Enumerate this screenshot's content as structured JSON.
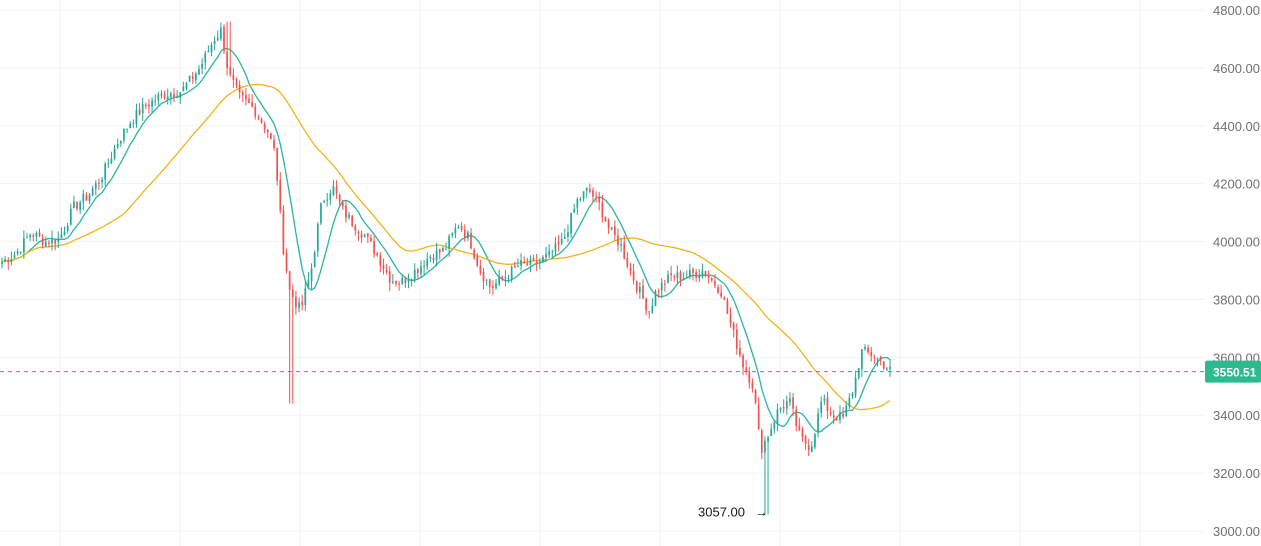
{
  "chart_data": {
    "type": "candlestick",
    "y_axis": {
      "position": "right",
      "ticks": [
        "3000.00",
        "3200.00",
        "3400.00",
        "3600.00",
        "3800.00",
        "4000.00",
        "4200.00",
        "4400.00",
        "4600.00",
        "4800.00"
      ],
      "ylim": [
        2950,
        4810
      ]
    },
    "current_price": {
      "value": 3550.51,
      "label": "3550.51"
    },
    "low_annotation": {
      "value": 3057.0,
      "label": "3057.00",
      "arrow": "→"
    },
    "grid": true,
    "num_bars": 285,
    "price_anchors": [
      [
        0,
        3930
      ],
      [
        8,
        3960
      ],
      [
        16,
        4030
      ],
      [
        24,
        4000
      ],
      [
        32,
        4010
      ],
      [
        40,
        4120
      ],
      [
        48,
        4160
      ],
      [
        56,
        4230
      ],
      [
        64,
        4340
      ],
      [
        72,
        4420
      ],
      [
        80,
        4470
      ],
      [
        90,
        4510
      ],
      [
        100,
        4520
      ],
      [
        110,
        4600
      ],
      [
        118,
        4700
      ],
      [
        122,
        4730
      ],
      [
        126,
        4580
      ],
      [
        132,
        4500
      ],
      [
        140,
        4460
      ],
      [
        148,
        4380
      ],
      [
        152,
        4300
      ],
      [
        156,
        4000
      ],
      [
        160,
        3830
      ],
      [
        166,
        3760
      ],
      [
        172,
        3900
      ],
      [
        178,
        4140
      ],
      [
        184,
        4190
      ],
      [
        190,
        4100
      ],
      [
        196,
        4060
      ],
      [
        202,
        4020
      ],
      [
        210,
        3940
      ],
      [
        216,
        3870
      ],
      [
        222,
        3860
      ],
      [
        230,
        3900
      ],
      [
        238,
        3950
      ],
      [
        246,
        3970
      ],
      [
        254,
        4060
      ],
      [
        260,
        4010
      ],
      [
        266,
        3900
      ],
      [
        272,
        3840
      ],
      [
        280,
        3880
      ],
      [
        288,
        3920
      ],
      [
        296,
        3920
      ],
      [
        304,
        3950
      ],
      [
        312,
        4000
      ],
      [
        320,
        4140
      ],
      [
        326,
        4180
      ],
      [
        332,
        4130
      ],
      [
        338,
        4040
      ],
      [
        344,
        3990
      ],
      [
        350,
        3890
      ],
      [
        356,
        3810
      ],
      [
        360,
        3760
      ],
      [
        364,
        3830
      ],
      [
        372,
        3880
      ],
      [
        380,
        3880
      ],
      [
        390,
        3900
      ],
      [
        400,
        3830
      ],
      [
        406,
        3700
      ],
      [
        412,
        3580
      ],
      [
        418,
        3500
      ],
      [
        422,
        3280
      ],
      [
        426,
        3330
      ],
      [
        432,
        3420
      ],
      [
        438,
        3450
      ],
      [
        444,
        3320
      ],
      [
        450,
        3290
      ],
      [
        456,
        3450
      ],
      [
        462,
        3400
      ],
      [
        468,
        3390
      ],
      [
        474,
        3500
      ],
      [
        478,
        3620
      ],
      [
        484,
        3610
      ],
      [
        490,
        3580
      ],
      [
        494,
        3555
      ]
    ],
    "moving_averages": [
      {
        "period": 9,
        "color": "#2ab5a0"
      },
      {
        "period": 40,
        "color": "#f2b31a"
      }
    ],
    "colors": {
      "up": "#26a69a",
      "down": "#ef5350",
      "price_line": "#26a69a",
      "price_tag_bg": "#2dba8f"
    }
  }
}
